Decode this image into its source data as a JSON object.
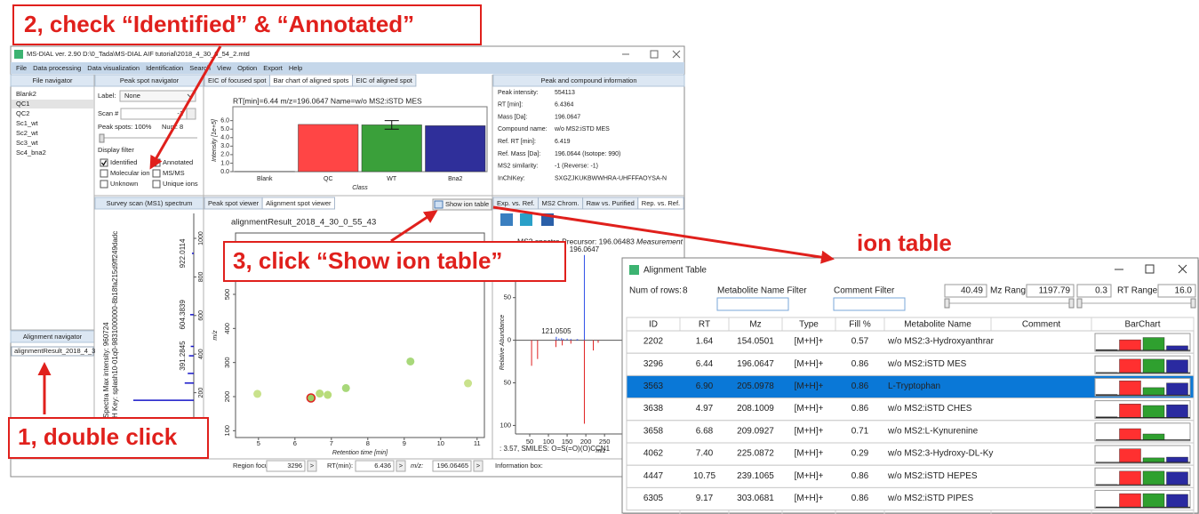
{
  "callouts": {
    "step2": "2, check “Identified” & “Annotated”",
    "step3": "3, click “Show ion table”",
    "step1": "1, double click",
    "ion_table": "ion table"
  },
  "main_window": {
    "title": "MS-DIAL ver. 2.90 D:\\0_Tada\\MS-DIAL AIF tutorial\\2018_4_30_0_54_2.mtd",
    "menu": [
      "File",
      "Data processing",
      "Data visualization",
      "Identification",
      "Search",
      "View",
      "Option",
      "Export",
      "Help"
    ],
    "file_navigator": {
      "header": "File navigator",
      "files": [
        "Blank2",
        "QC1",
        "QC2",
        "Sc1_wt",
        "Sc2_wt",
        "Sc3_wt",
        "Sc4_bna2"
      ],
      "selected": 1
    },
    "alignment_navigator": {
      "header": "Alignment navigator",
      "items": [
        "alignmentResult_2018_4_3"
      ]
    },
    "peak_spot_navigator": {
      "header": "Peak spot navigator",
      "label_caption": "Label:",
      "label_value": "None",
      "scan_caption": "Scan #",
      "scan_value": "-1",
      "peak_spots": "Peak spots: 100%",
      "num": "Num: 8",
      "display_filter": "Display filter",
      "filters": [
        {
          "label": "Identified",
          "checked": true
        },
        {
          "label": "Annotated",
          "checked": true
        },
        {
          "label": "Molecular ion",
          "checked": false
        },
        {
          "label": "MS/MS",
          "checked": false
        },
        {
          "label": "Unknown",
          "checked": false
        },
        {
          "label": "Unique ions",
          "checked": false
        }
      ]
    },
    "top_tabs": {
      "items": [
        "EIC of focused spot",
        "Bar chart of aligned spots",
        "EIC of aligned spot"
      ],
      "active": 1
    },
    "bar_chart": {
      "type": "bar",
      "title": "RT[min]=6.44 m/z=196.0647 Name=w/o MS2:iSTD MES",
      "categories": [
        "Blank",
        "QC",
        "WT",
        "Bna2"
      ],
      "values": [
        0.02,
        5.55,
        5.5,
        5.4
      ],
      "errors": [
        0,
        0,
        0.5,
        0
      ],
      "colors": [
        "#707070",
        "#ff4545",
        "#3aa03a",
        "#2f2f9a"
      ],
      "ylim": [
        0,
        6.8
      ],
      "yticks": [
        {
          "value": 0,
          "label": "0.0"
        },
        {
          "value": 1,
          "label": "1.0"
        },
        {
          "value": 2,
          "label": "2.0"
        },
        {
          "value": 3,
          "label": "3.0"
        },
        {
          "value": 4,
          "label": "4.0"
        },
        {
          "value": 5,
          "label": "5.0"
        },
        {
          "value": 6,
          "label": "6.0"
        }
      ],
      "ylabel": "Intensity [1e+5]",
      "xlabel": "Class"
    },
    "compound_info": {
      "header": "Peak and compound information",
      "rows": [
        [
          "Peak intensity:",
          "554113"
        ],
        [
          "RT [min]:",
          "6.4364"
        ],
        [
          "Mass [Da]:",
          "196.0647"
        ],
        [
          "Compound name:",
          "w/o MS2:iSTD MES"
        ],
        [
          "Ref. RT [min]:",
          "6.419"
        ],
        [
          "Ref. Mass [Da]:",
          "196.0644 (Isotope: 990)"
        ],
        [
          "MS2 similarity:",
          "-1 (Reverse: -1)"
        ],
        [
          "InChIKey:",
          "SXGZJKUKBWWHRA-UHFFFAOYSA-N"
        ]
      ]
    },
    "survey_scan": {
      "type": "spectrum",
      "header": "Survey scan (MS1) spectrum",
      "max_intensity": "Spectra Max intensity: 960724",
      "splash": "H Key: splash10-01q0-9831000000-8b18fa215d9ff249dadc",
      "xlabel": "Relative Abundance",
      "mz_lim": [
        0,
        1060
      ],
      "mz_ticks": [
        200,
        400,
        600,
        800,
        1000
      ],
      "intensity_lim": [
        0,
        100
      ],
      "peaks": {
        "mz": [
          161,
          250,
          300,
          440
        ],
        "intensity": [
          100,
          15,
          10,
          5
        ]
      },
      "labeled_peaks": {
        "mz": [
          391.2845,
          604.3839,
          922.0114
        ],
        "intensity": [
          8,
          6,
          3
        ]
      }
    },
    "viewer_tabs": {
      "items": [
        "Peak spot viewer",
        "Alignment spot viewer"
      ],
      "active": 1
    },
    "show_ion_table": "Show ion table",
    "scatter": {
      "type": "scatter",
      "title": "alignmentResult_2018_4_30_0_55_43",
      "xlabel": "Retention time [min]",
      "ylabel": "m/z",
      "xlim": [
        4.37,
        11.2
      ],
      "xticks": [
        5,
        6,
        7,
        8,
        9,
        10,
        11
      ],
      "ylim": [
        80,
        680
      ],
      "yticks": [
        100,
        200,
        300,
        400,
        500,
        600
      ],
      "x": [
        6.44,
        6.9,
        4.97,
        6.68,
        7.4,
        10.75,
        9.17
      ],
      "y": [
        196.0647,
        205.0978,
        208.1009,
        209.0927,
        225.0872,
        239.1065,
        303.0681
      ],
      "colors": [
        "#9acd64",
        "#b8dc7a",
        "#c9e28c",
        "#b8dc7a",
        "#a8d87a",
        "#c9e28c",
        "#a8d87a"
      ],
      "selected": 0
    },
    "ms2_tabs": {
      "items": [
        "Exp. vs. Ref.",
        "MS2 Chrom.",
        "Raw vs. Purified",
        "Rep. vs. Ref."
      ],
      "active": 3
    },
    "ms2": {
      "type": "mirror-spectrum",
      "title": "MS2 spectra Precursor: 196.06483",
      "legend": "Measurement",
      "xlabel": "m/z",
      "ylabel": "Relative Abundance",
      "xlim": [
        12,
        290
      ],
      "xticks": [
        50,
        100,
        150,
        200,
        250
      ],
      "ylim": [
        -110,
        105
      ],
      "yticks": [
        {
          "value": -100,
          "label": "100"
        },
        {
          "value": -50,
          "label": "50"
        },
        0,
        50
      ],
      "measured": {
        "mz": [
          196.0647,
          121.0505,
          128,
          135,
          140,
          150,
          160,
          176,
          178
        ],
        "intensity": [
          100,
          4,
          2,
          2.5,
          1.5,
          2,
          1.5,
          1,
          1.2
        ],
        "color": "#3050e8"
      },
      "reference": {
        "mz": [
          55,
          71,
          120,
          137,
          160,
          196.06,
          220,
          233
        ],
        "intensity": [
          -30,
          -22,
          -8,
          -6,
          -4,
          -98,
          -12,
          -3
        ],
        "color": "#e02020"
      },
      "note": ": 3.57, SMILES: O=S(=O)(O)CCN1"
    },
    "status": {
      "region_caption": "Region focus by ID:",
      "region_value": "3296",
      "go1": ">",
      "rt_caption": "RT(min):",
      "rt_value": "6.436",
      "go2": ">",
      "mz_caption": "m/z:",
      "mz_value": "196.06465",
      "go3": ">",
      "info": "Information box:"
    }
  },
  "alignment_table": {
    "title": "Alignment Table",
    "num_rows_caption": "Num of rows:",
    "num_rows": "8",
    "name_filter": "Metabolite Name Filter",
    "comment_filter": "Comment Filter",
    "mz_min": "40.49",
    "mz_range": "Mz Range",
    "mz_max": "1197.79",
    "rt_min": "0.3",
    "rt_range": "RT Range",
    "rt_max": "16.0",
    "columns": [
      "ID",
      "RT",
      "Mz",
      "Type",
      "Fill %",
      "Metabolite Name",
      "Comment",
      "BarChart"
    ],
    "rows": [
      [
        "2202",
        "1.64",
        "154.0501",
        "[M+H]+",
        "0.57",
        "w/o MS2:3-Hydroxyanthrar"
      ],
      [
        "3296",
        "6.44",
        "196.0647",
        "[M+H]+",
        "0.86",
        "w/o MS2:iSTD MES"
      ],
      [
        "3563",
        "6.90",
        "205.0978",
        "[M+H]+",
        "0.86",
        "L-Tryptophan"
      ],
      [
        "3638",
        "4.97",
        "208.1009",
        "[M+H]+",
        "0.86",
        "w/o MS2:iSTD CHES"
      ],
      [
        "3658",
        "6.68",
        "209.0927",
        "[M+H]+",
        "0.71",
        "w/o MS2:L-Kynurenine"
      ],
      [
        "4062",
        "7.40",
        "225.0872",
        "[M+H]+",
        "0.29",
        "w/o MS2:3-Hydroxy-DL-Ky"
      ],
      [
        "4447",
        "10.75",
        "239.1065",
        "[M+H]+",
        "0.86",
        "w/o MS2:iSTD HEPES"
      ],
      [
        "6305",
        "9.17",
        "303.0681",
        "[M+H]+",
        "0.86",
        "w/o MS2:iSTD PIPES"
      ]
    ],
    "selected_row": 2,
    "barchart_colors": [
      "#404040",
      "#ff3030",
      "#2fa02f",
      "#2a2aa0"
    ],
    "barcharts": [
      [
        0.05,
        0.7,
        0.85,
        0.3
      ],
      [
        0.02,
        0.9,
        0.9,
        0.85
      ],
      [
        0.05,
        0.95,
        0.5,
        0.8
      ],
      [
        0.05,
        0.9,
        0.8,
        0.85
      ],
      [
        0,
        0.75,
        0.4,
        0
      ],
      [
        0,
        0.9,
        0.3,
        0.35
      ],
      [
        0.02,
        0.9,
        0.9,
        0.85
      ],
      [
        0.02,
        0.9,
        0.9,
        0.85
      ]
    ]
  }
}
